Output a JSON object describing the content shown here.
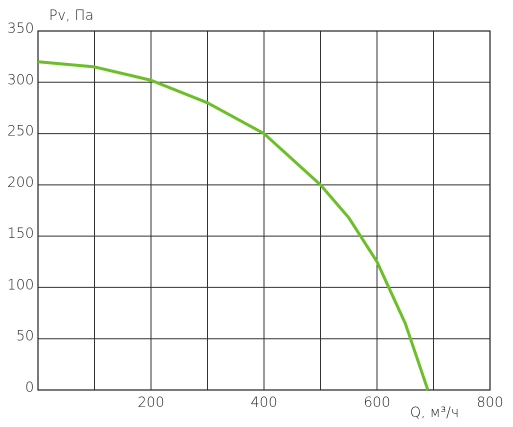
{
  "chart_data": {
    "type": "line",
    "xlabel": "Q, м³/ч",
    "ylabel": "Pv, Па",
    "x": [
      0,
      100,
      200,
      300,
      400,
      500,
      550,
      600,
      650,
      690
    ],
    "series": [
      {
        "color": "#6cbf2a",
        "values": [
          320,
          315,
          302,
          280,
          250,
          200,
          168,
          125,
          65,
          0
        ]
      }
    ],
    "xlim": [
      0,
      800
    ],
    "ylim": [
      0,
      350
    ],
    "xticks": [
      {
        "value": 100,
        "label": null
      },
      200,
      {
        "value": 300,
        "label": null
      },
      400,
      {
        "value": 500,
        "label": null
      },
      600,
      {
        "value": 700,
        "label": null
      },
      800
    ],
    "yticks": [
      0,
      50,
      100,
      150,
      200,
      250,
      300,
      350
    ],
    "grid": true
  }
}
